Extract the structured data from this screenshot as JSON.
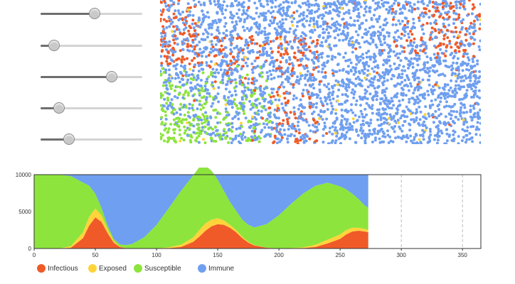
{
  "sliders": [
    {
      "name": "slider-1",
      "fraction": 0.53
    },
    {
      "name": "slider-2",
      "fraction": 0.13
    },
    {
      "name": "slider-3",
      "fraction": 0.7
    },
    {
      "name": "slider-4",
      "fraction": 0.18
    },
    {
      "name": "slider-5",
      "fraction": 0.28
    }
  ],
  "colors": {
    "infectious": "#f05a28",
    "exposed": "#ffd43b",
    "susceptible": "#8de43c",
    "immune": "#6f9ff0"
  },
  "chart_data": {
    "type": "area",
    "xlim": [
      0,
      365
    ],
    "ylim": [
      0,
      10000
    ],
    "x_ticks": [
      "0",
      "50",
      "100",
      "150",
      "200",
      "250",
      "300",
      "350"
    ],
    "y_ticks": [
      "0",
      "5000",
      "10000"
    ],
    "grid": true,
    "legend_placement": "bottom-left",
    "series": [
      {
        "name": "Infectious",
        "color": "#f05a28"
      },
      {
        "name": "Exposed",
        "color": "#ffd43b"
      },
      {
        "name": "Susceptible",
        "color": "#8de43c"
      },
      {
        "name": "Immune",
        "color": "#6f9ff0"
      }
    ],
    "x": [
      0,
      10,
      20,
      30,
      40,
      45,
      50,
      55,
      60,
      65,
      70,
      75,
      80,
      90,
      100,
      110,
      120,
      130,
      135,
      140,
      145,
      150,
      155,
      160,
      165,
      170,
      175,
      180,
      190,
      200,
      210,
      220,
      230,
      240,
      250,
      255,
      260,
      265,
      270,
      273
    ],
    "infectious": [
      0,
      0,
      0,
      100,
      1400,
      3100,
      4200,
      3600,
      2100,
      800,
      200,
      50,
      0,
      0,
      0,
      50,
      200,
      900,
      1600,
      2400,
      3000,
      3300,
      3200,
      2800,
      2200,
      1400,
      800,
      400,
      100,
      0,
      0,
      50,
      200,
      700,
      1300,
      1900,
      2300,
      2400,
      2300,
      2200
    ],
    "exposed": [
      0,
      0,
      0,
      200,
      800,
      1200,
      1200,
      900,
      500,
      200,
      50,
      0,
      0,
      0,
      0,
      100,
      300,
      600,
      900,
      1000,
      900,
      800,
      600,
      400,
      300,
      200,
      100,
      50,
      0,
      0,
      50,
      100,
      300,
      500,
      600,
      600,
      500,
      400,
      350,
      300
    ],
    "susceptible": [
      10000,
      10000,
      10000,
      9500,
      6700,
      4200,
      2000,
      1000,
      500,
      300,
      300,
      400,
      600,
      1500,
      3200,
      5300,
      7300,
      8400,
      8500,
      7800,
      6600,
      5200,
      4000,
      3100,
      2600,
      2300,
      2300,
      2400,
      3200,
      4500,
      6000,
      7300,
      8000,
      7700,
      6500,
      5500,
      4600,
      3900,
      3200,
      3000
    ]
  },
  "legend": {
    "infectious": "Infectious",
    "exposed": "Exposed",
    "susceptible": "Susceptible",
    "immune": "Immune"
  }
}
